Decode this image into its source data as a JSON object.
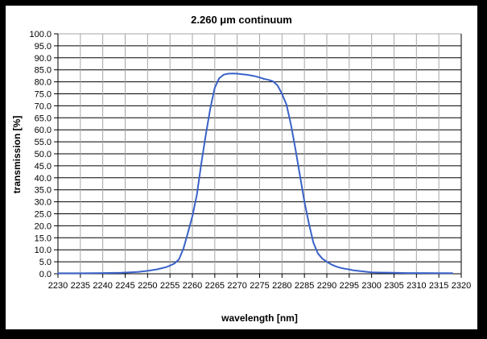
{
  "frame": {
    "border_color": "#000000",
    "background": "#ffffff"
  },
  "chart_data": {
    "type": "line",
    "title": "2.260 μm continuum",
    "xlabel": "wavelength [nm]",
    "ylabel": "transmission [%]",
    "xlim": [
      2230,
      2320
    ],
    "ylim": [
      0,
      100
    ],
    "x_tick_step": 5,
    "y_tick_step": 5,
    "y_tick_decimals": 1,
    "grid": {
      "horizontal_color": "#000000",
      "vertical_color": "#a6a6a6",
      "top_border_color": "#a6a6a6",
      "axis_color": "#000000"
    },
    "legend": "none",
    "series": [
      {
        "name": "transmission",
        "color": "#3a62c8",
        "points": [
          [
            2230,
            0.2
          ],
          [
            2235,
            0.2
          ],
          [
            2240,
            0.3
          ],
          [
            2244,
            0.4
          ],
          [
            2246,
            0.6
          ],
          [
            2248,
            0.8
          ],
          [
            2250,
            1.2
          ],
          [
            2252,
            1.8
          ],
          [
            2254,
            2.7
          ],
          [
            2255,
            3.4
          ],
          [
            2256,
            4.3
          ],
          [
            2257,
            6.0
          ],
          [
            2258,
            10.5
          ],
          [
            2259,
            17.0
          ],
          [
            2260,
            24.0
          ],
          [
            2261,
            33.0
          ],
          [
            2262,
            46.0
          ],
          [
            2263,
            58.0
          ],
          [
            2264,
            69.0
          ],
          [
            2265,
            77.5
          ],
          [
            2266,
            81.5
          ],
          [
            2267,
            83.0
          ],
          [
            2268,
            83.4
          ],
          [
            2269,
            83.5
          ],
          [
            2270,
            83.4
          ],
          [
            2271,
            83.2
          ],
          [
            2272,
            83.0
          ],
          [
            2273,
            82.7
          ],
          [
            2274,
            82.3
          ],
          [
            2275,
            81.8
          ],
          [
            2276,
            81.2
          ],
          [
            2277,
            80.8
          ],
          [
            2278,
            80.2
          ],
          [
            2279,
            78.5
          ],
          [
            2280,
            75.0
          ],
          [
            2281,
            70.5
          ],
          [
            2282,
            62.0
          ],
          [
            2283,
            52.0
          ],
          [
            2284,
            41.0
          ],
          [
            2285,
            30.0
          ],
          [
            2286,
            21.0
          ],
          [
            2287,
            13.0
          ],
          [
            2288,
            8.5
          ],
          [
            2289,
            6.3
          ],
          [
            2290,
            5.0
          ],
          [
            2291,
            3.9
          ],
          [
            2292,
            3.1
          ],
          [
            2293,
            2.5
          ],
          [
            2294,
            2.1
          ],
          [
            2295,
            1.8
          ],
          [
            2296,
            1.4
          ],
          [
            2297,
            1.2
          ],
          [
            2298,
            1.0
          ],
          [
            2299,
            0.8
          ],
          [
            2300,
            0.6
          ],
          [
            2302,
            0.5
          ],
          [
            2305,
            0.4
          ],
          [
            2308,
            0.3
          ],
          [
            2310,
            0.3
          ],
          [
            2312,
            0.3
          ],
          [
            2315,
            0.25
          ],
          [
            2318,
            0.25
          ]
        ]
      }
    ]
  }
}
